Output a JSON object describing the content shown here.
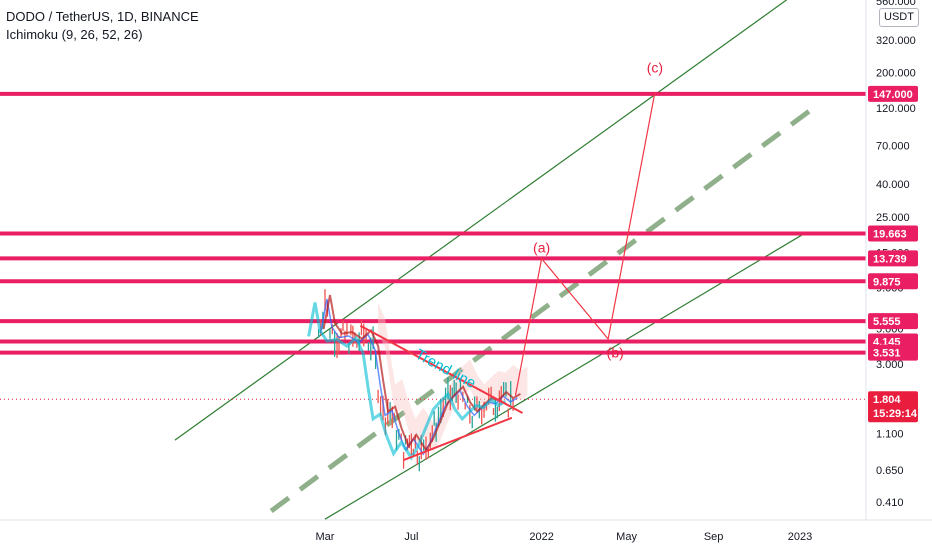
{
  "header": {
    "symbol_line": "DODO / TetherUS, 1D, BINANCE",
    "indicator_line": "Ichimoku (9, 26, 52, 26)",
    "currency_button": "USDT"
  },
  "colors": {
    "level": "#e91e63",
    "channel": "#2e7d32",
    "midline": "#8fb08a",
    "wave": "#f23645",
    "trend": "#00bcd4",
    "price_badge": "#e91e3e",
    "candle_green": "#26a69a",
    "candle_red": "#ef5350",
    "conv_line": "#2962ff",
    "base_line": "#b71c1c",
    "cloud": "#f8c8c8"
  },
  "chart_data": {
    "type": "line",
    "scale": "log",
    "y_axis_ticks": [
      "560.000",
      "320.000",
      "200.000",
      "120.000",
      "70.000",
      "40.000",
      "25.000",
      "15.000",
      "9.000",
      "5.000",
      "3.000",
      "1.804",
      "1.100",
      "0.650",
      "0.410"
    ],
    "y_axis_tick_values": [
      560,
      320,
      200,
      120,
      70,
      40,
      25,
      15,
      9,
      5,
      3,
      1.804,
      1.1,
      0.65,
      0.41
    ],
    "x_axis_ticks": [
      "Mar",
      "Jul",
      "2022",
      "May",
      "Sep",
      "2023"
    ],
    "x_axis_tick_dates": [
      "2021-03-01",
      "2021-07-01",
      "2022-01-01",
      "2022-05-01",
      "2022-09-01",
      "2023-01-01"
    ],
    "ylim": [
      0.34,
      560
    ],
    "horizontal_levels": [
      {
        "label": "147.000",
        "value": 147
      },
      {
        "label": "19.663",
        "value": 19.663
      },
      {
        "label": "13.739",
        "value": 13.739
      },
      {
        "label": "9.875",
        "value": 9.875
      },
      {
        "label": "5.555",
        "value": 5.555
      },
      {
        "label": "4.145",
        "value": 4.145
      },
      {
        "label": "3.531",
        "value": 3.531
      }
    ],
    "current_price": {
      "label": "1.804",
      "value": 1.804,
      "countdown": "15:29:14"
    },
    "wave_labels": [
      {
        "text": "(a)",
        "date": "2022-01-01",
        "value": 15
      },
      {
        "text": "(b)",
        "date": "2022-04-15",
        "value": 3.3
      },
      {
        "text": "(c)",
        "date": "2022-06-10",
        "value": 200
      }
    ],
    "projection_path": [
      {
        "date": "2021-11-25",
        "value": 1.9
      },
      {
        "date": "2022-01-01",
        "value": 13.7
      },
      {
        "date": "2022-04-05",
        "value": 4.3
      },
      {
        "date": "2022-06-10",
        "value": 150
      }
    ],
    "trend_annotation": "Trend line",
    "trendline_upper": [
      {
        "date": "2021-04-20",
        "value": 5.2
      },
      {
        "date": "2021-12-05",
        "value": 1.48
      }
    ],
    "trendline_lower": [
      {
        "date": "2021-06-20",
        "value": 0.75
      },
      {
        "date": "2021-11-20",
        "value": 1.38
      }
    ],
    "channel_upper": [
      {
        "date": "2020-08-01",
        "value": 1.0
      },
      {
        "date": "2022-12-20",
        "value": 600
      }
    ],
    "channel_lower": [
      {
        "date": "2021-03-01",
        "value": 0.32
      },
      {
        "date": "2023-01-10",
        "value": 20
      }
    ],
    "channel_mid": [
      {
        "date": "2020-12-15",
        "value": 0.36
      },
      {
        "date": "2023-01-20",
        "value": 120
      }
    ],
    "price_series": [
      {
        "date": "2021-02-20",
        "value": 4.6
      },
      {
        "date": "2021-03-01",
        "value": 7.5
      },
      {
        "date": "2021-03-08",
        "value": 5.0
      },
      {
        "date": "2021-03-18",
        "value": 4.3
      },
      {
        "date": "2021-04-01",
        "value": 4.4
      },
      {
        "date": "2021-04-15",
        "value": 4.0
      },
      {
        "date": "2021-04-28",
        "value": 4.5
      },
      {
        "date": "2021-05-08",
        "value": 3.6
      },
      {
        "date": "2021-05-15",
        "value": 2.2
      },
      {
        "date": "2021-05-22",
        "value": 1.4
      },
      {
        "date": "2021-06-01",
        "value": 1.5
      },
      {
        "date": "2021-06-10",
        "value": 1.1
      },
      {
        "date": "2021-06-20",
        "value": 0.85
      },
      {
        "date": "2021-07-01",
        "value": 1.0
      },
      {
        "date": "2021-07-15",
        "value": 0.8
      },
      {
        "date": "2021-07-25",
        "value": 0.95
      },
      {
        "date": "2021-08-05",
        "value": 1.25
      },
      {
        "date": "2021-08-15",
        "value": 1.6
      },
      {
        "date": "2021-08-25",
        "value": 1.8
      },
      {
        "date": "2021-09-05",
        "value": 2.0
      },
      {
        "date": "2021-09-15",
        "value": 1.6
      },
      {
        "date": "2021-09-25",
        "value": 1.4
      },
      {
        "date": "2021-10-05",
        "value": 1.55
      },
      {
        "date": "2021-10-15",
        "value": 1.7
      },
      {
        "date": "2021-10-25",
        "value": 1.65
      },
      {
        "date": "2021-11-05",
        "value": 1.85
      },
      {
        "date": "2021-11-15",
        "value": 1.7
      },
      {
        "date": "2021-11-25",
        "value": 1.804
      }
    ]
  }
}
